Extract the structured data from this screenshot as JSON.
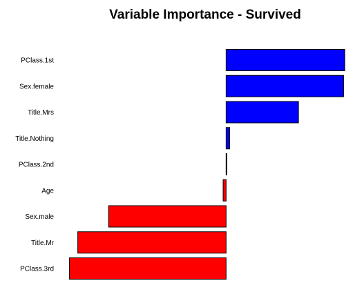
{
  "chart_data": {
    "type": "bar",
    "orientation": "horizontal",
    "title": "Variable Importance - Survived",
    "xlabel": "",
    "ylabel": "",
    "grid": false,
    "legend": "none",
    "categories": [
      "PClass.1st",
      "Sex.female",
      "Title.Mrs",
      "Title.Nothing",
      "PClass.2nd",
      "Age",
      "Sex.male",
      "Title.Mr",
      "PClass.3rd"
    ],
    "values": [
      1.0,
      0.99,
      0.61,
      0.03,
      0.003,
      -0.025,
      -0.99,
      -1.25,
      -1.32
    ],
    "xlim": [
      -1.37,
      1.04
    ],
    "colors": {
      "positive": "#0000ff",
      "negative": "#ff0000"
    }
  }
}
